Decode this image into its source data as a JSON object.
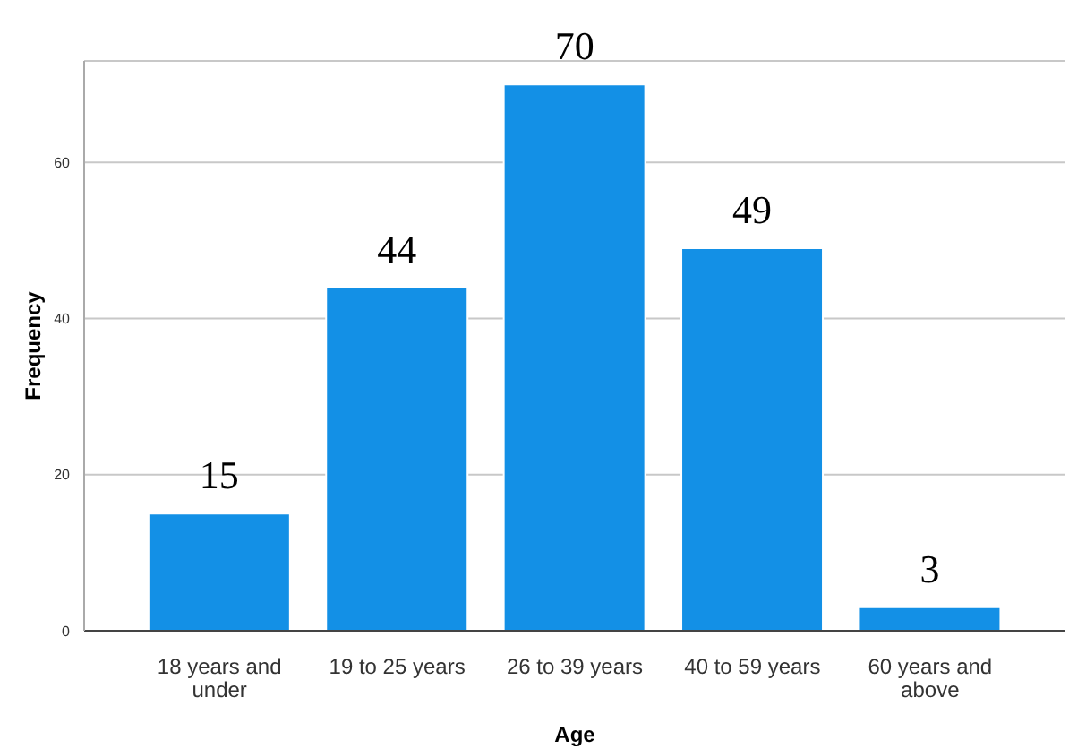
{
  "chart_data": {
    "type": "bar",
    "xlabel": "Age",
    "ylabel": "Frequency",
    "categories": [
      "18 years and under",
      "19 to 25 years",
      "26 to 39 years",
      "40 to 59 years",
      "60 years and above"
    ],
    "values": [
      15,
      44,
      70,
      49,
      3
    ],
    "color": "#1390e6",
    "ylim": [
      0,
      73
    ],
    "yticks": [
      0,
      20,
      40,
      60
    ],
    "grid": "y",
    "data_labels": true
  }
}
